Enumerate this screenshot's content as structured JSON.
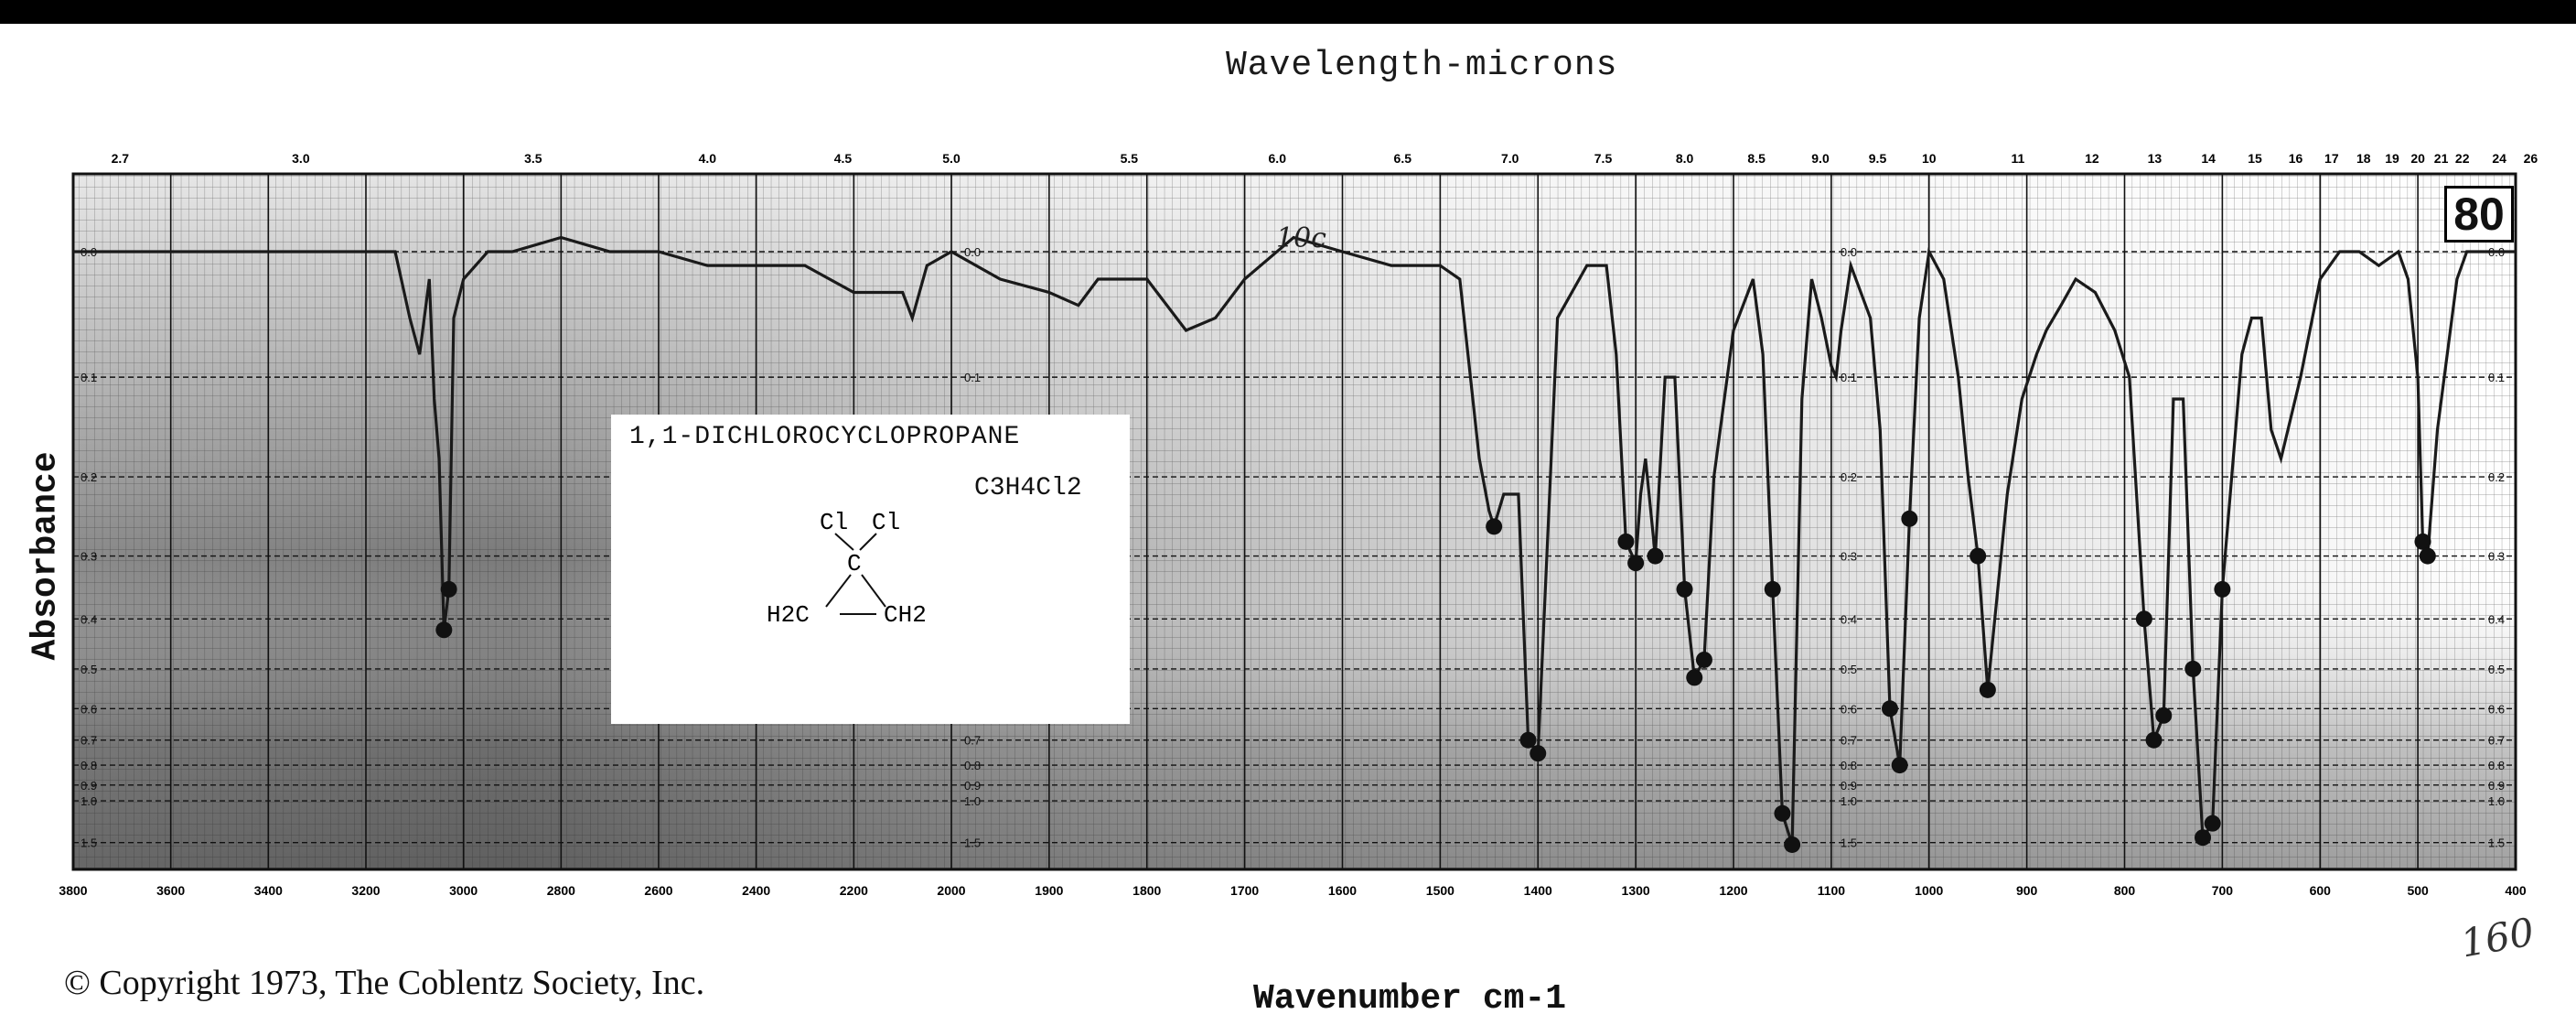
{
  "header": {
    "top_axis_title": "Wavelength-microns"
  },
  "axes": {
    "ylabel": "Absorbance",
    "xlabel": "Wavenumber cm-1"
  },
  "footer": {
    "copyright": "© Copyright 1973, The Coblentz Society, Inc.",
    "handwritten_note": "160"
  },
  "spectrum_number": "80",
  "compound": {
    "name": "1,1-DICHLOROCYCLOPROPANE",
    "formula": "C3H4Cl2",
    "structure": [
      "Cl",
      "Cl",
      "C",
      "H2C",
      "CH2"
    ]
  },
  "annotation": "10c",
  "colors": {
    "trace": "#1a1a1a",
    "grid": "#555555",
    "paper_dark": "#6a6a6a"
  },
  "chart_data": {
    "type": "line",
    "title": "",
    "xlabel": "Wavenumber cm-1",
    "ylabel": "Absorbance",
    "xlim": [
      3800,
      400
    ],
    "x_ticks": [
      3800,
      3600,
      3400,
      3200,
      3000,
      2800,
      2600,
      2400,
      2200,
      2000,
      1900,
      1800,
      1700,
      1600,
      1500,
      1400,
      1300,
      1200,
      1100,
      1000,
      900,
      800,
      700,
      600,
      500,
      400
    ],
    "x_tick_labels": [
      "3800",
      "3600",
      "3400",
      "3200",
      "3000",
      "2800",
      "2600",
      "2400",
      "2200",
      "2000",
      "1900",
      "1800",
      "1700",
      "1600",
      "1500",
      "1400",
      "1300",
      "1200",
      "1100",
      "1000",
      "900",
      "800",
      "700",
      "600",
      "500",
      "400"
    ],
    "top_ticks_microns": [
      2.7,
      3.0,
      3.5,
      4.0,
      4.5,
      5.0,
      5.5,
      6.0,
      6.5,
      7.0,
      7.5,
      8.0,
      8.5,
      9.0,
      9.5,
      10,
      11,
      12,
      13,
      14,
      15,
      16,
      17,
      18,
      19,
      20,
      21,
      22,
      24,
      26
    ],
    "top_tick_labels": [
      "2.7",
      "3.0",
      "3.5",
      "4.0",
      "4.5",
      "5.0",
      "5.5",
      "6.0",
      "6.5",
      "7.0",
      "7.5",
      "8.0",
      "8.5",
      "9.0",
      "9.5",
      "10",
      "11",
      "12",
      "13",
      "14",
      "15",
      "16",
      "17",
      "18",
      "19",
      "20",
      "21",
      "22",
      "24",
      "26"
    ],
    "y_ticks": [
      "0.0",
      "0.1",
      "0.2",
      "0.3",
      "0.4",
      "0.5",
      "0.6",
      "0.7",
      "0.8",
      "0.9",
      "1.0",
      "1.5"
    ],
    "y_scale": "absorbance (nonlinear, increasing downward)",
    "grid": true,
    "series": [
      {
        "x": [
          3800,
          3600,
          3400,
          3200,
          3140,
          3110,
          3090,
          3070,
          3060,
          3050,
          3040,
          3030,
          3020,
          3000,
          2950,
          2900,
          2800,
          2700,
          2600,
          2500,
          2400,
          2300,
          2200,
          2100,
          2080,
          2050,
          2000,
          1950,
          1900,
          1870,
          1850,
          1800,
          1760,
          1730,
          1700,
          1650,
          1600,
          1550,
          1500,
          1480,
          1460,
          1450,
          1445,
          1435,
          1420,
          1410,
          1400,
          1380,
          1350,
          1330,
          1320,
          1310,
          1300,
          1295,
          1290,
          1280,
          1270,
          1260,
          1250,
          1240,
          1230,
          1220,
          1200,
          1180,
          1170,
          1160,
          1150,
          1140,
          1130,
          1120,
          1110,
          1100,
          1095,
          1090,
          1080,
          1060,
          1050,
          1040,
          1030,
          1020,
          1010,
          1000,
          985,
          970,
          960,
          950,
          940,
          920,
          905,
          890,
          880,
          865,
          850,
          830,
          810,
          795,
          780,
          770,
          760,
          750,
          740,
          730,
          720,
          710,
          700,
          680,
          670,
          660,
          650,
          640,
          620,
          600,
          580,
          560,
          540,
          520,
          510,
          500,
          495,
          490,
          480,
          460,
          450,
          440,
          430,
          410,
          400
        ],
        "y": [
          0.0,
          0.0,
          0.0,
          0.0,
          0.0,
          0.05,
          0.08,
          0.02,
          0.12,
          0.18,
          0.42,
          0.35,
          0.05,
          0.02,
          0.0,
          0.0,
          -0.01,
          0.0,
          0.0,
          0.01,
          0.01,
          0.01,
          0.03,
          0.03,
          0.05,
          0.01,
          0.0,
          0.02,
          0.03,
          0.04,
          0.02,
          0.02,
          0.06,
          0.05,
          0.02,
          -0.01,
          0.0,
          0.01,
          0.01,
          0.02,
          0.18,
          0.24,
          0.26,
          0.22,
          0.22,
          0.7,
          0.75,
          0.05,
          0.01,
          0.01,
          0.08,
          0.28,
          0.31,
          0.22,
          0.18,
          0.3,
          0.1,
          0.1,
          0.35,
          0.52,
          0.48,
          0.2,
          0.06,
          0.02,
          0.08,
          0.35,
          1.1,
          1.55,
          0.12,
          0.02,
          0.05,
          0.09,
          0.1,
          0.06,
          0.01,
          0.05,
          0.15,
          0.6,
          0.8,
          0.25,
          0.05,
          0.0,
          0.02,
          0.1,
          0.2,
          0.3,
          0.55,
          0.22,
          0.12,
          0.08,
          0.06,
          0.04,
          0.02,
          0.03,
          0.06,
          0.1,
          0.4,
          0.7,
          0.62,
          0.12,
          0.12,
          0.5,
          1.4,
          1.2,
          0.35,
          0.08,
          0.05,
          0.05,
          0.15,
          0.18,
          0.1,
          0.02,
          0.0,
          0.0,
          0.01,
          0.0,
          0.02,
          0.1,
          0.28,
          0.3,
          0.15,
          0.02,
          0.0,
          0.0,
          0.0,
          0.0,
          0.0
        ]
      }
    ]
  }
}
